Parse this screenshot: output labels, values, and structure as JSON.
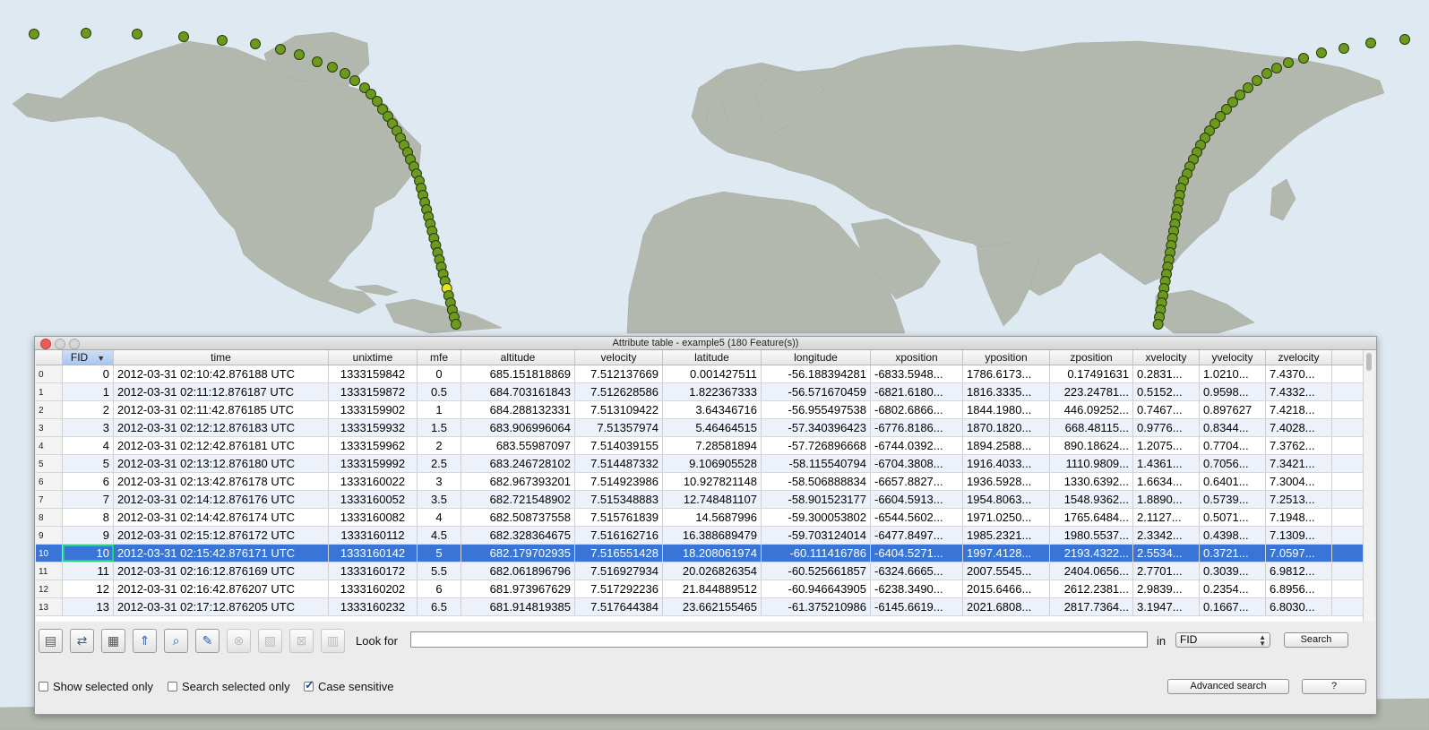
{
  "window": {
    "title": "Attribute table - example5 (180 Feature(s))"
  },
  "table": {
    "columns": [
      "FID",
      "time",
      "unixtime",
      "mfe",
      "altitude",
      "velocity",
      "latitude",
      "longitude",
      "xposition",
      "yposition",
      "zposition",
      "xvelocity",
      "yvelocity",
      "zvelocity"
    ],
    "sort_indicator": "▼",
    "selected_row": 10,
    "rows": [
      [
        "0",
        "0",
        "2012-03-31 02:10:42.876188 UTC",
        "1333159842",
        "0",
        "685.151818869",
        "7.512137669",
        "0.001427511",
        "-56.188394281",
        "-6833.5948...",
        "1786.6173...",
        "0.17491631",
        "0.2831...",
        "1.0210...",
        "7.4370..."
      ],
      [
        "1",
        "1",
        "2012-03-31 02:11:12.876187 UTC",
        "1333159872",
        "0.5",
        "684.703161843",
        "7.512628586",
        "1.822367333",
        "-56.571670459",
        "-6821.6180...",
        "1816.3335...",
        "223.24781...",
        "0.5152...",
        "0.9598...",
        "7.4332..."
      ],
      [
        "2",
        "2",
        "2012-03-31 02:11:42.876185 UTC",
        "1333159902",
        "1",
        "684.288132331",
        "7.513109422",
        "3.64346716",
        "-56.955497538",
        "-6802.6866...",
        "1844.1980...",
        "446.09252...",
        "0.7467...",
        "0.897627",
        "7.4218..."
      ],
      [
        "3",
        "3",
        "2012-03-31 02:12:12.876183 UTC",
        "1333159932",
        "1.5",
        "683.906996064",
        "7.51357974",
        "5.46464515",
        "-57.340396423",
        "-6776.8186...",
        "1870.1820...",
        "668.48115...",
        "0.9776...",
        "0.8344...",
        "7.4028..."
      ],
      [
        "4",
        "4",
        "2012-03-31 02:12:42.876181 UTC",
        "1333159962",
        "2",
        "683.55987097",
        "7.514039155",
        "7.28581894",
        "-57.726896668",
        "-6744.0392...",
        "1894.2588...",
        "890.18624...",
        "1.2075...",
        "0.7704...",
        "7.3762..."
      ],
      [
        "5",
        "5",
        "2012-03-31 02:13:12.876180 UTC",
        "1333159992",
        "2.5",
        "683.246728102",
        "7.514487332",
        "9.106905528",
        "-58.115540794",
        "-6704.3808...",
        "1916.4033...",
        "1110.9809...",
        "1.4361...",
        "0.7056...",
        "7.3421..."
      ],
      [
        "6",
        "6",
        "2012-03-31 02:13:42.876178 UTC",
        "1333160022",
        "3",
        "682.967393201",
        "7.514923986",
        "10.927821148",
        "-58.506888834",
        "-6657.8827...",
        "1936.5928...",
        "1330.6392...",
        "1.6634...",
        "0.6401...",
        "7.3004..."
      ],
      [
        "7",
        "7",
        "2012-03-31 02:14:12.876176 UTC",
        "1333160052",
        "3.5",
        "682.721548902",
        "7.515348883",
        "12.748481107",
        "-58.901523177",
        "-6604.5913...",
        "1954.8063...",
        "1548.9362...",
        "1.8890...",
        "0.5739...",
        "7.2513..."
      ],
      [
        "8",
        "8",
        "2012-03-31 02:14:42.876174 UTC",
        "1333160082",
        "4",
        "682.508737558",
        "7.515761839",
        "14.5687996",
        "-59.300053802",
        "-6544.5602...",
        "1971.0250...",
        "1765.6484...",
        "2.1127...",
        "0.5071...",
        "7.1948..."
      ],
      [
        "9",
        "9",
        "2012-03-31 02:15:12.876172 UTC",
        "1333160112",
        "4.5",
        "682.328364675",
        "7.516162716",
        "16.388689479",
        "-59.703124014",
        "-6477.8497...",
        "1985.2321...",
        "1980.5537...",
        "2.3342...",
        "0.4398...",
        "7.1309..."
      ],
      [
        "10",
        "10",
        "2012-03-31 02:15:42.876171 UTC",
        "1333160142",
        "5",
        "682.179702935",
        "7.516551428",
        "18.208061974",
        "-60.111416786",
        "-6404.5271...",
        "1997.4128...",
        "2193.4322...",
        "2.5534...",
        "0.3721...",
        "7.0597..."
      ],
      [
        "11",
        "11",
        "2012-03-31 02:16:12.876169 UTC",
        "1333160172",
        "5.5",
        "682.061896796",
        "7.516927934",
        "20.026826354",
        "-60.525661857",
        "-6324.6665...",
        "2007.5545...",
        "2404.0656...",
        "2.7701...",
        "0.3039...",
        "6.9812..."
      ],
      [
        "12",
        "12",
        "2012-03-31 02:16:42.876207 UTC",
        "1333160202",
        "6",
        "681.973967629",
        "7.517292236",
        "21.844889512",
        "-60.946643905",
        "-6238.3490...",
        "2015.6466...",
        "2612.2381...",
        "2.9839...",
        "0.2354...",
        "6.8956..."
      ],
      [
        "13",
        "13",
        "2012-03-31 02:17:12.876205 UTC",
        "1333160232",
        "6.5",
        "681.914819385",
        "7.517644384",
        "23.662155465",
        "-61.375210986",
        "-6145.6619...",
        "2021.6808...",
        "2817.7364...",
        "3.1947...",
        "0.1667...",
        "6.8030..."
      ]
    ]
  },
  "toolbar": {
    "buttons": [
      {
        "name": "toggle-editing-icon",
        "glyph": "▤",
        "enabled": true
      },
      {
        "name": "invert-selection-icon",
        "glyph": "⇄",
        "enabled": true
      },
      {
        "name": "deselect-all-icon",
        "glyph": "▦",
        "enabled": true
      },
      {
        "name": "move-selection-top-icon",
        "glyph": "⇑",
        "enabled": true
      },
      {
        "name": "zoom-to-selection-icon",
        "glyph": "⌕",
        "enabled": true
      },
      {
        "name": "edit-pencil-icon",
        "glyph": "✎",
        "enabled": true
      },
      {
        "name": "delete-selected-icon",
        "glyph": "⊗",
        "enabled": false
      },
      {
        "name": "new-column-icon",
        "glyph": "▧",
        "enabled": false
      },
      {
        "name": "delete-column-icon",
        "glyph": "⊠",
        "enabled": false
      },
      {
        "name": "field-calculator-icon",
        "glyph": "▥",
        "enabled": false
      }
    ],
    "look_for_label": "Look for",
    "search_value": "",
    "in_label": "in",
    "field_selected": "FID",
    "search_button": "Search"
  },
  "bottom": {
    "show_selected_only": {
      "label": "Show selected only",
      "checked": false
    },
    "search_selected_only": {
      "label": "Search selected only",
      "checked": false
    },
    "case_sensitive": {
      "label": "Case sensitive",
      "checked": true
    },
    "advanced_search_button": "Advanced search",
    "help_button": "?"
  },
  "map": {
    "water_color": "#dfe9f1",
    "land_color": "#b3b8ae",
    "point_color": "#6b9a1c",
    "highlight_point_color": "#e5e619",
    "point_stroke": "#2b3a10"
  }
}
